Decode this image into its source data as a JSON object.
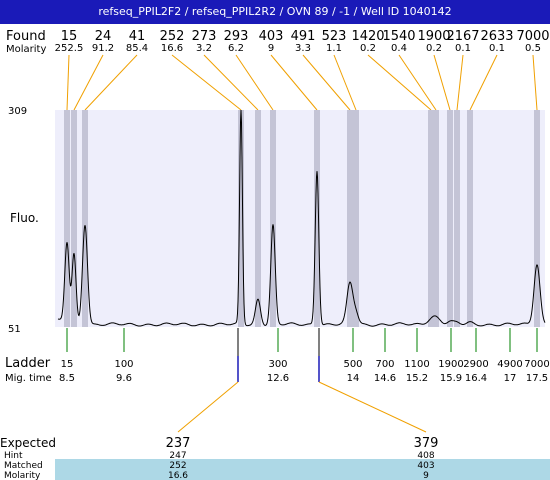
{
  "title": "refseq_PPIL2F2 / refseq_PPIL2R2 / OVN 89 / -1 / Well ID 1040142",
  "labels": {
    "found": "Found",
    "molarity": "Molarity",
    "fluo": "Fluo.",
    "ladder": "Ladder",
    "mig_time": "Mig. time",
    "expected": "Expected",
    "hint": "Hint",
    "matched": "Matched",
    "bottom_molarity": "Molarity"
  },
  "y_axis": {
    "max": "309",
    "min": "51"
  },
  "found_peaks": [
    {
      "size": "15",
      "molarity": "252.5"
    },
    {
      "size": "24",
      "molarity": "91.2"
    },
    {
      "size": "41",
      "molarity": "85.4"
    },
    {
      "size": "252",
      "molarity": "16.6"
    },
    {
      "size": "273",
      "molarity": "3.2"
    },
    {
      "size": "293",
      "molarity": "6.2"
    },
    {
      "size": "403",
      "molarity": "9"
    },
    {
      "size": "491",
      "molarity": "3.3"
    },
    {
      "size": "523",
      "molarity": "1.1"
    },
    {
      "size": "1420",
      "molarity": "0.2"
    },
    {
      "size": "1540",
      "molarity": "0.4"
    },
    {
      "size": "1900",
      "molarity": "0.2"
    },
    {
      "size": "2167",
      "molarity": "0.1"
    },
    {
      "size": "2633",
      "molarity": "0.1"
    },
    {
      "size": "7000",
      "molarity": "0.5"
    }
  ],
  "ladder": [
    {
      "size": "15",
      "time": "8.5"
    },
    {
      "size": "100",
      "time": "9.6"
    },
    {
      "size": "300",
      "time": "12.6"
    },
    {
      "size": "500",
      "time": "14"
    },
    {
      "size": "700",
      "time": "14.6"
    },
    {
      "size": "1100",
      "time": "15.2"
    },
    {
      "size": "1900",
      "time": "15.9"
    },
    {
      "size": "2900",
      "time": "16.4"
    },
    {
      "size": "4900",
      "time": "17"
    },
    {
      "size": "7000",
      "time": "17.5"
    }
  ],
  "expected": [
    {
      "expected": "237",
      "hint": "247",
      "matched": "252",
      "molarity": "16.6"
    },
    {
      "expected": "379",
      "hint": "408",
      "matched": "403",
      "molarity": "9"
    }
  ],
  "colors": {
    "title_bar": "#1a1ab8",
    "plot_bg": "#eeeefb",
    "band": "#c4c4d6",
    "connector": "#f0a000",
    "ladder_tick": "#008000",
    "expected_marker": "#1a1ab8",
    "highlight_row": "#add8e6"
  },
  "chart_data": {
    "type": "line",
    "title": "",
    "xlabel": "",
    "ylabel": "Fluo.",
    "ylim": [
      51,
      309
    ],
    "x_ladder_sizes": [
      15,
      100,
      300,
      500,
      700,
      1100,
      1900,
      2900,
      4900,
      7000
    ],
    "peaks": [
      {
        "size": 15,
        "height": 150
      },
      {
        "size": 24,
        "height": 137
      },
      {
        "size": 41,
        "height": 174
      },
      {
        "size": 252,
        "height": 309
      },
      {
        "size": 273,
        "height": 84
      },
      {
        "size": 293,
        "height": 172
      },
      {
        "size": 403,
        "height": 238
      },
      {
        "size": 491,
        "height": 103
      },
      {
        "size": 523,
        "height": 67
      },
      {
        "size": 1420,
        "height": 58
      },
      {
        "size": 1540,
        "height": 61
      },
      {
        "size": 1900,
        "height": 57
      },
      {
        "size": 2167,
        "height": 56
      },
      {
        "size": 2633,
        "height": 56
      },
      {
        "size": 7000,
        "height": 126
      }
    ]
  }
}
